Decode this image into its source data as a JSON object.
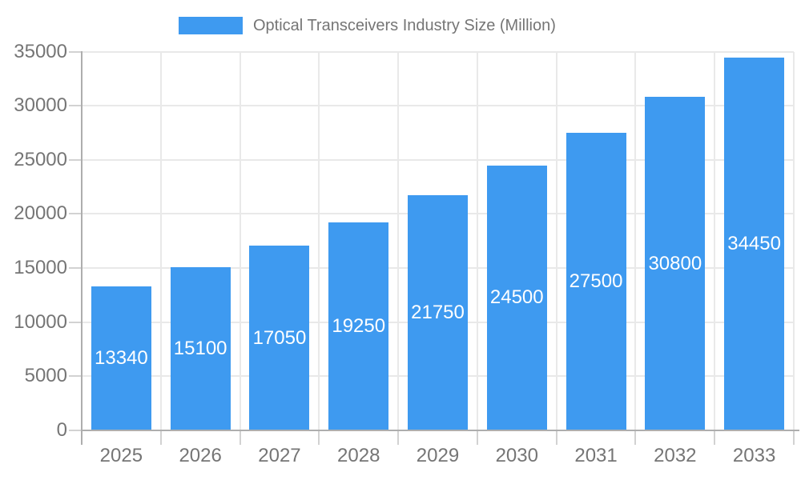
{
  "legend": {
    "label": "Optical Transceivers Industry Size (Million)"
  },
  "colors": {
    "bar": "#3E9AF0",
    "bar_label": "#ffffff",
    "axis_text": "#757575",
    "legend_text": "#757575",
    "grid": "#e9e9e9",
    "tick": "#d2d2d2",
    "axis_line": "#aeaeae",
    "background": "#ffffff"
  },
  "chart_data": {
    "type": "bar",
    "title": "Optical Transceivers Industry Size (Million)",
    "categories": [
      "2025",
      "2026",
      "2027",
      "2028",
      "2029",
      "2030",
      "2031",
      "2032",
      "2033"
    ],
    "values": [
      13340,
      15100,
      17050,
      19250,
      21750,
      24500,
      27500,
      30800,
      34450
    ],
    "series_name": "Optical Transceivers Industry Size (Million)",
    "xlabel": "",
    "ylabel": "",
    "ylim": [
      0,
      35000
    ],
    "ytick_step": 5000,
    "ytick_labels": [
      "0",
      "5000",
      "10000",
      "15000",
      "20000",
      "25000",
      "30000",
      "35000"
    ],
    "grid": true,
    "legend_position": "top",
    "bar_labels_inside": true
  }
}
